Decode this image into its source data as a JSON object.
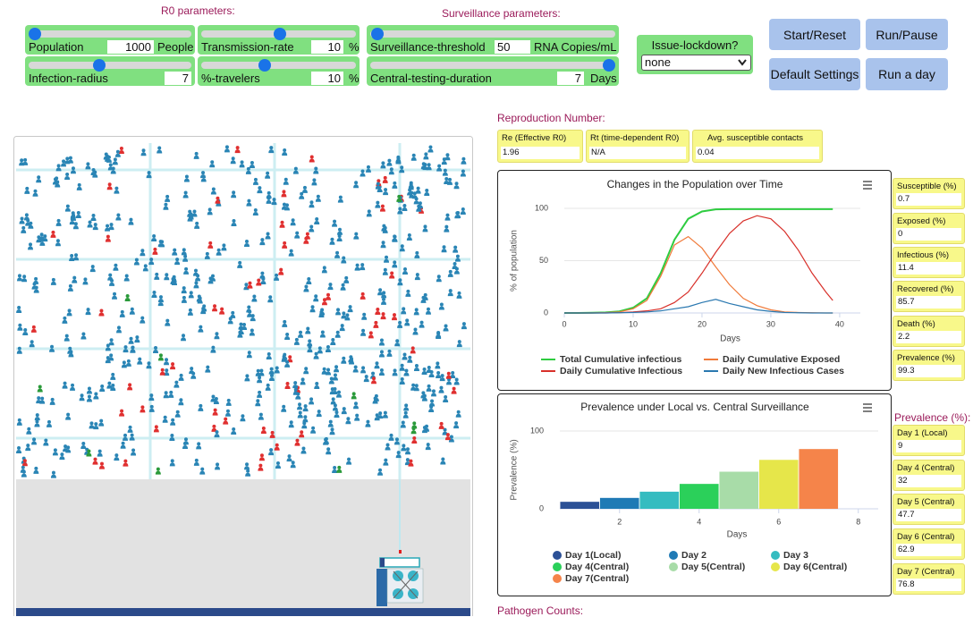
{
  "r0_parameters": {
    "title": "R0 parameters:",
    "controls": [
      {
        "label": "Population",
        "value": 1000,
        "unit": "People"
      },
      {
        "label": "Transmission-rate",
        "value": 10,
        "unit": "%"
      },
      {
        "label": "Infection-radius",
        "value": 7
      },
      {
        "label": "%-travelers",
        "value": 10,
        "unit": "%"
      }
    ]
  },
  "surveillance_parameters": {
    "title": "Surveillance parameters:",
    "controls": [
      {
        "label": "Surveillance-threshold",
        "value": 50,
        "unit": "RNA Copies/mL"
      },
      {
        "label": "Central-testing-duration",
        "value": 7,
        "unit": "Days"
      }
    ]
  },
  "lockdown": {
    "label": "Issue-lockdown?",
    "value": "none"
  },
  "buttons": [
    "Start/Reset",
    "Run/Pause",
    "Default Settings",
    "Run a day"
  ],
  "reproduction": {
    "title": "Reproduction Number:",
    "boxes": [
      {
        "label": "Re (Effective R0)",
        "value": 1.96
      },
      {
        "label": "Rt (time-dependent R0)",
        "value": "N/A"
      },
      {
        "label": "Avg. susceptible contacts",
        "value": 0.04
      }
    ]
  },
  "chart_data": [
    {
      "type": "line",
      "title": "Changes in the Population over Time",
      "xlabel": "Days",
      "ylabel": "% of population",
      "x": [
        0,
        2,
        4,
        6,
        8,
        10,
        12,
        14,
        16,
        18,
        20,
        22,
        24,
        26,
        28,
        30,
        32,
        34,
        36,
        38,
        39
      ],
      "series": [
        {
          "name": "Total Cumulative infectious",
          "color": "#2ecc40",
          "values": [
            0,
            0,
            0.2,
            0.5,
            1.5,
            5,
            14,
            38,
            70,
            90,
            97,
            99,
            99.3,
            99.3,
            99.3,
            99.3,
            99.3,
            99.3,
            99.3,
            99.3,
            99.3
          ]
        },
        {
          "name": "Daily Cumulative Exposed",
          "color": "#f07a3a",
          "values": [
            0,
            0,
            0,
            0.3,
            1,
            4,
            12,
            35,
            65,
            73,
            62,
            44,
            27,
            14,
            7,
            3,
            1,
            0.5,
            0.2,
            0,
            0
          ]
        },
        {
          "name": "Daily Cumulative Infectious",
          "color": "#d8302a",
          "values": [
            0,
            0,
            0,
            0,
            0.3,
            1,
            2,
            4,
            10,
            20,
            38,
            58,
            76,
            88,
            93,
            90,
            78,
            60,
            38,
            20,
            12
          ]
        },
        {
          "name": "Daily New Infectious Cases",
          "color": "#2a78b0",
          "values": [
            0,
            0,
            0,
            0,
            0.2,
            0.5,
            1,
            2,
            4,
            6,
            10,
            13,
            9,
            6,
            3,
            1.5,
            0.5,
            0.2,
            0,
            0,
            0
          ]
        }
      ],
      "xlim": [
        0,
        43
      ],
      "ylim": [
        0,
        100
      ],
      "xticks": [
        0,
        10,
        20,
        30,
        40
      ],
      "yticks": [
        0,
        50,
        100
      ],
      "grid": true
    },
    {
      "type": "bar",
      "title": "Prevalence under Local vs. Central Surveillance",
      "xlabel": "Days",
      "ylabel": "Prevalence (%)",
      "series": [
        {
          "name": "Day 1(Local)",
          "color": "#2b5096",
          "x": [
            1
          ],
          "values": [
            9
          ]
        },
        {
          "name": "Day 2",
          "color": "#1f7ab5",
          "x": [
            2
          ],
          "values": [
            14
          ]
        },
        {
          "name": "Day 3",
          "color": "#35bcc0",
          "x": [
            3
          ],
          "values": [
            22
          ]
        },
        {
          "name": "Day 4(Central)",
          "color": "#2bd05a",
          "x": [
            4
          ],
          "values": [
            32
          ]
        },
        {
          "name": "Day 5(Central)",
          "color": "#a8dca8",
          "x": [
            5
          ],
          "values": [
            47.7
          ]
        },
        {
          "name": "Day 6(Central)",
          "color": "#e6e64a",
          "x": [
            6
          ],
          "values": [
            62.9
          ]
        },
        {
          "name": "Day 7(Central)",
          "color": "#f5844a",
          "x": [
            7
          ],
          "values": [
            76.8
          ]
        }
      ],
      "xlim": [
        0.5,
        8.5
      ],
      "ylim": [
        0,
        100
      ],
      "xticks": [
        2,
        4,
        6,
        8
      ],
      "yticks": [
        0,
        100
      ]
    }
  ],
  "stats": [
    {
      "label": "Susceptible (%)",
      "value": 0.7
    },
    {
      "label": "Exposed (%)",
      "value": 0
    },
    {
      "label": "Infectious (%)",
      "value": 11.4
    },
    {
      "label": "Recovered (%)",
      "value": 85.7
    },
    {
      "label": "Death (%)",
      "value": 2.2
    },
    {
      "label": "Prevalence (%)",
      "value": 99.3
    }
  ],
  "prevalence": {
    "title": "Prevalence (%):",
    "items": [
      {
        "label": "Day 1 (Local)",
        "value": 9
      },
      {
        "label": "Day 4 (Central)",
        "value": 32
      },
      {
        "label": "Day 5 (Central)",
        "value": 47.7
      },
      {
        "label": "Day 6 (Central)",
        "value": 62.9
      },
      {
        "label": "Day 7 (Central)",
        "value": 76.8
      }
    ]
  },
  "pathogen_counts": {
    "title": "Pathogen Counts:"
  }
}
